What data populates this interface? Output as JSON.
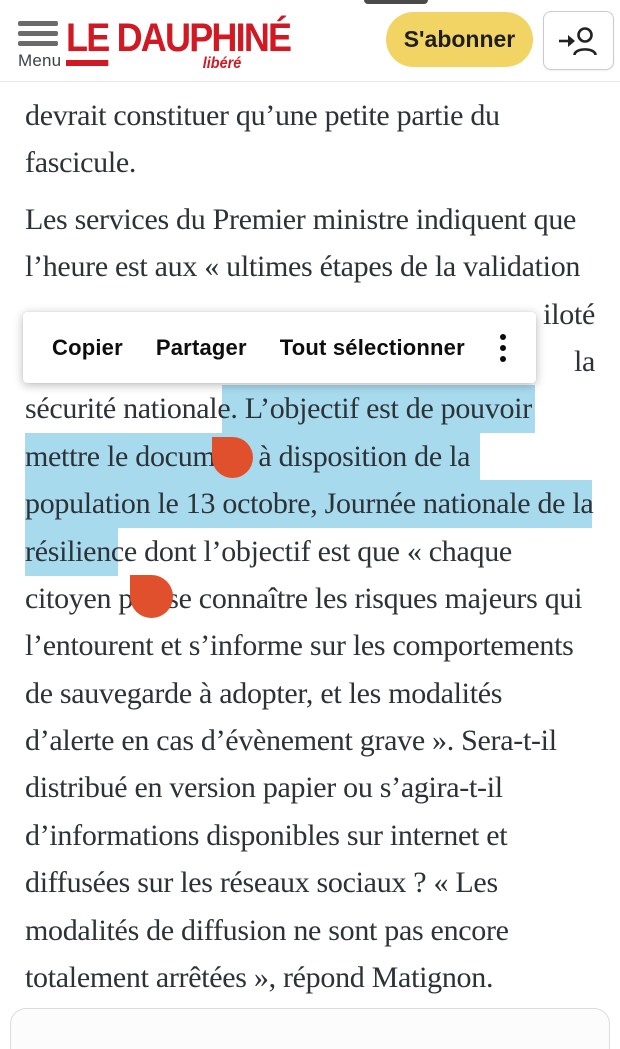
{
  "header": {
    "menu_label": "Menu",
    "logo_le": "LE",
    "logo_rest": " DAUPHINÉ",
    "logo_subtitle": "libéré",
    "subscribe_label": "S'abonner",
    "login_icon": "login-person-icon"
  },
  "context_menu": {
    "items": [
      "Copier",
      "Partager",
      "Tout sélectionner"
    ],
    "more_icon": "kebab-menu-icon"
  },
  "article": {
    "lines": [
      {
        "t": "devrait constituer qu’une petite partie du"
      },
      {
        "t": "fascicule."
      },
      {
        "t": "Les services du Premier ministre indiquent que",
        "para": true
      },
      {
        "t": "l’heure est aux « ultimes étapes de la validation"
      },
      {
        "t": "iloté",
        "frag": true
      },
      {
        "t": "la",
        "frag": true
      },
      {
        "t": "sécurité nationale. L’objectif est de pouvoir"
      },
      {
        "t": "mettre le document à disposition de la"
      },
      {
        "t": "population le 13 octobre, Journée nationale de la"
      },
      {
        "t": "résilience dont l’objectif est que « chaque"
      },
      {
        "t": "citoyen puisse connaître les risques majeurs qui"
      },
      {
        "t": "l’entourent et s’informe sur les comportements"
      },
      {
        "t": "de sauvegarde à adopter, et les modalités"
      },
      {
        "t": "d’alerte en cas d’évènement grave ». Sera-t-il"
      },
      {
        "t": "distribué en version papier ou s’agira-t-il"
      },
      {
        "t": "d’informations disponibles sur internet et"
      },
      {
        "t": "diffusées sur les réseaux sociaux ? « Les"
      },
      {
        "t": "modalités de diffusion ne sont pas encore"
      },
      {
        "t": "totalement arrêtées », répond Matignon."
      }
    ]
  },
  "selection": {
    "selected_text": "L’objectif est de pouvoir mettre le document à disposition de la population le 13 octobre, Journée nationale de la résilience",
    "handle_count": 2
  },
  "colors": {
    "brand_red": "#d01923",
    "subscribe_yellow": "#f2d464",
    "selection_blue": "#a8daee",
    "handle_orange": "#e0502c",
    "text_ink": "#2d3237"
  }
}
